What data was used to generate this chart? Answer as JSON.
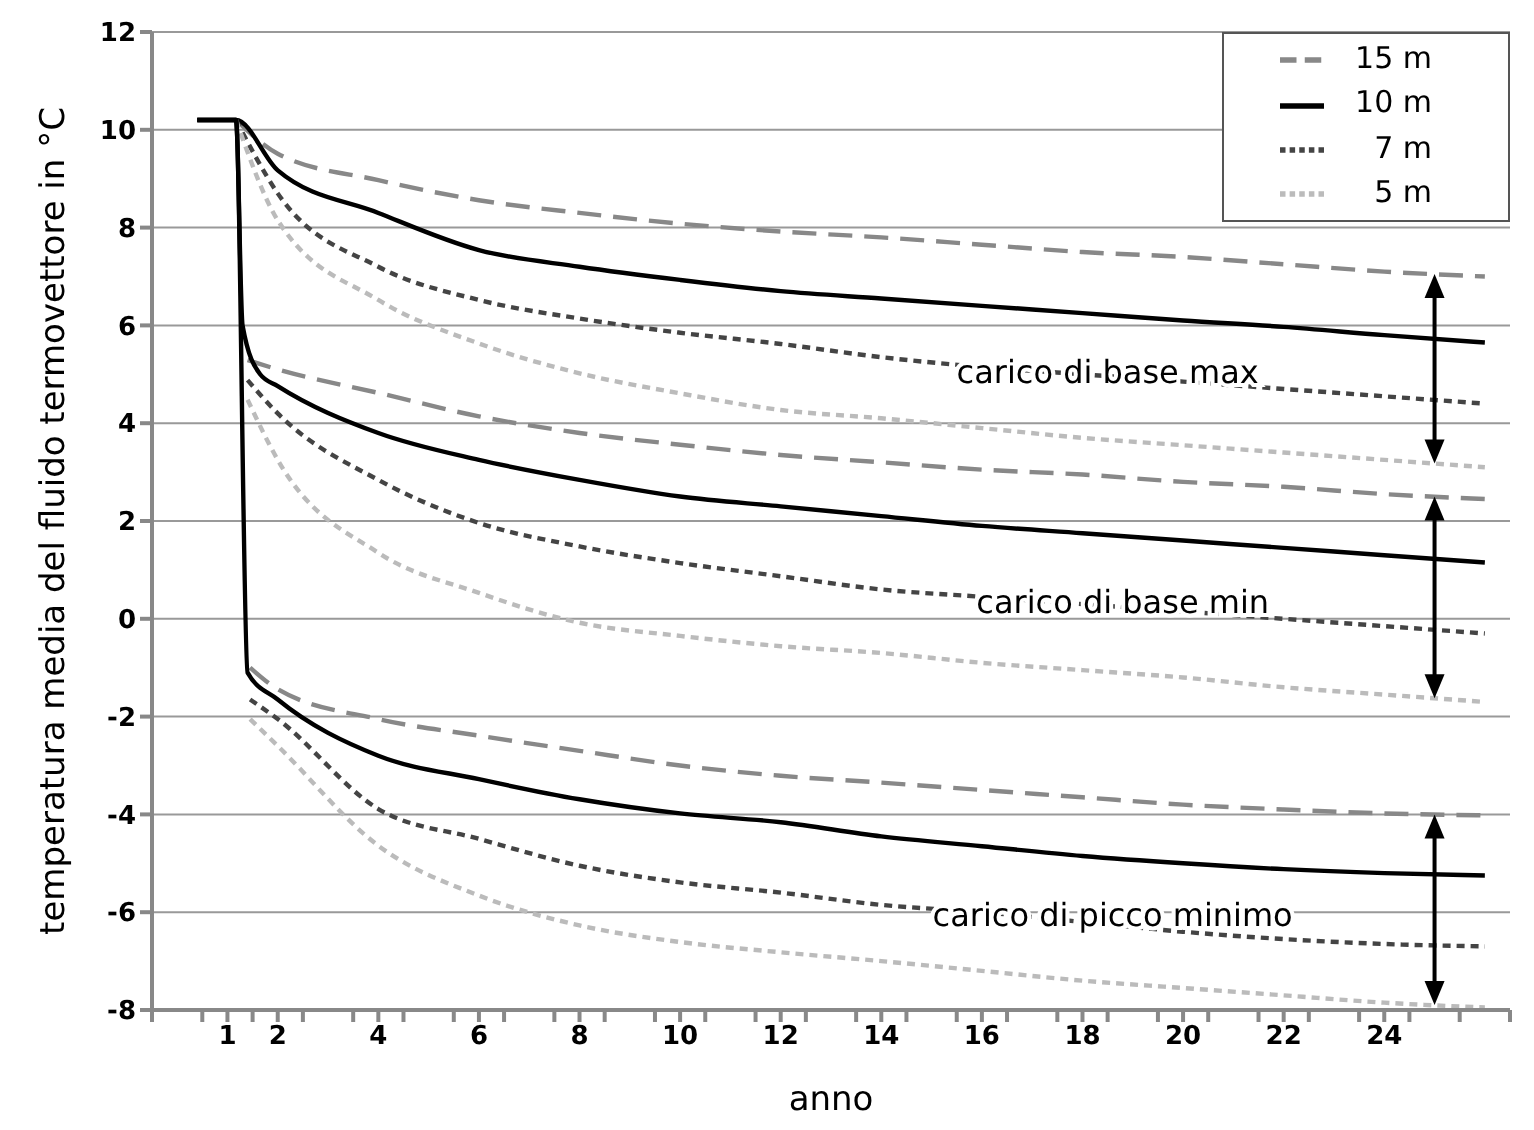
{
  "chart_data": {
    "type": "line",
    "xlabel": "anno",
    "ylabel": "temperatura media del fluido termovettore in °C",
    "xlim": [
      -0.5,
      26.5
    ],
    "xticks": [
      {
        "value": -0.5,
        "label": null
      },
      {
        "value": 0.5,
        "label": null
      },
      1,
      {
        "value": 1.5,
        "label": null
      },
      2,
      {
        "value": 2.5,
        "label": null
      },
      {
        "value": 3.5,
        "label": null
      },
      4,
      {
        "value": 4.5,
        "label": null
      },
      {
        "value": 5.5,
        "label": null
      },
      6,
      {
        "value": 6.5,
        "label": null
      },
      {
        "value": 7.5,
        "label": null
      },
      8,
      {
        "value": 8.5,
        "label": null
      },
      {
        "value": 9.5,
        "label": null
      },
      10,
      {
        "value": 10.5,
        "label": null
      },
      {
        "value": 11.5,
        "label": null
      },
      12,
      {
        "value": 12.5,
        "label": null
      },
      {
        "value": 13.5,
        "label": null
      },
      14,
      {
        "value": 14.5,
        "label": null
      },
      {
        "value": 15.5,
        "label": null
      },
      16,
      {
        "value": 16.5,
        "label": null
      },
      {
        "value": 17.5,
        "label": null
      },
      18,
      {
        "value": 18.5,
        "label": null
      },
      {
        "value": 19.5,
        "label": null
      },
      20,
      {
        "value": 20.5,
        "label": null
      },
      {
        "value": 21.5,
        "label": null
      },
      22,
      {
        "value": 22.5,
        "label": null
      },
      {
        "value": 23.5,
        "label": null
      },
      24,
      {
        "value": 24.5,
        "label": null
      },
      {
        "value": 25.5,
        "label": null
      },
      {
        "value": 26.5,
        "label": null
      }
    ],
    "ylim": [
      -8,
      12
    ],
    "yticks": [
      -8,
      -6,
      -4,
      -2,
      0,
      2,
      4,
      6,
      8,
      10,
      12
    ],
    "grid": "y",
    "legend": "top right",
    "series": [
      {
        "name": "15 m",
        "color": "#888888",
        "line_style": "dashed",
        "x": [
          1.17,
          2,
          4,
          6,
          8,
          10,
          12,
          14,
          16,
          18,
          20,
          22,
          24,
          26
        ],
        "values": [
          10.2,
          9.51,
          8.97,
          8.56,
          8.3,
          8.08,
          7.92,
          7.8,
          7.65,
          7.5,
          7.4,
          7.25,
          7.1,
          7.0
        ]
      },
      {
        "name": "10 m",
        "color": "#000000",
        "line_style": "solid",
        "x": [
          0.4,
          1.17,
          2,
          4,
          6,
          8,
          10,
          12,
          14,
          16,
          18,
          20,
          22,
          24,
          26
        ],
        "values": [
          10.2,
          10.2,
          9.17,
          8.3,
          7.54,
          7.2,
          6.93,
          6.7,
          6.55,
          6.4,
          6.25,
          6.1,
          5.97,
          5.8,
          5.65
        ]
      },
      {
        "name": "7 m",
        "color": "#444444",
        "line_style": "dotted",
        "x": [
          1.17,
          2,
          4,
          6,
          8,
          10,
          12,
          14,
          16,
          18,
          20,
          22,
          24,
          26
        ],
        "values": [
          10.2,
          8.7,
          7.2,
          6.52,
          6.14,
          5.85,
          5.62,
          5.35,
          5.15,
          5.0,
          4.85,
          4.7,
          4.55,
          4.4
        ]
      },
      {
        "name": "5 m",
        "color": "#bbbbbb",
        "line_style": "dotted",
        "x": [
          1.17,
          2,
          4,
          6,
          8,
          10,
          12,
          14,
          16,
          18,
          20,
          22,
          24,
          26
        ],
        "values": [
          10.2,
          8.15,
          6.52,
          5.63,
          5.02,
          4.61,
          4.27,
          4.1,
          3.9,
          3.7,
          3.55,
          3.4,
          3.25,
          3.1
        ]
      },
      {
        "color": "#888888",
        "line_style": "dashed",
        "x": [
          1.4,
          2,
          4,
          6,
          8,
          10,
          12,
          14,
          16,
          18,
          20,
          22,
          24,
          26
        ],
        "values": [
          5.29,
          5.1,
          4.62,
          4.14,
          3.8,
          3.56,
          3.35,
          3.2,
          3.05,
          2.95,
          2.8,
          2.7,
          2.55,
          2.45
        ]
      },
      {
        "color": "#000000",
        "line_style": "solid",
        "x": [
          0.4,
          1.17,
          1.3,
          1.65,
          2,
          4,
          6,
          8,
          10,
          12,
          14,
          16,
          18,
          20,
          22,
          24,
          26
        ],
        "values": [
          10.2,
          10.2,
          6.0,
          5.0,
          4.76,
          3.8,
          3.25,
          2.84,
          2.5,
          2.3,
          2.1,
          1.9,
          1.75,
          1.6,
          1.45,
          1.3,
          1.15
        ]
      },
      {
        "color": "#444444",
        "line_style": "dotted",
        "x": [
          1.4,
          2,
          4,
          6,
          8,
          10,
          12,
          14,
          16,
          18,
          20,
          22,
          24,
          26
        ],
        "values": [
          4.88,
          4.2,
          2.84,
          1.96,
          1.48,
          1.14,
          0.87,
          0.6,
          0.45,
          0.3,
          0.15,
          0.0,
          -0.15,
          -0.3
        ]
      },
      {
        "color": "#bbbbbb",
        "line_style": "dotted",
        "x": [
          1.4,
          2,
          4,
          6,
          8,
          10,
          12,
          14,
          16,
          18,
          20,
          22,
          24,
          26
        ],
        "values": [
          4.48,
          3.25,
          1.35,
          0.53,
          -0.08,
          -0.35,
          -0.56,
          -0.7,
          -0.9,
          -1.05,
          -1.2,
          -1.4,
          -1.55,
          -1.7
        ]
      },
      {
        "color": "#888888",
        "line_style": "dashed",
        "x": [
          1.45,
          2,
          4,
          6,
          8,
          10,
          12,
          14,
          16,
          18,
          20,
          22,
          24,
          26
        ],
        "values": [
          -1.0,
          -1.44,
          -2.05,
          -2.39,
          -2.7,
          -3.0,
          -3.21,
          -3.35,
          -3.5,
          -3.65,
          -3.8,
          -3.9,
          -3.98,
          -4.02
        ]
      },
      {
        "color": "#000000",
        "line_style": "solid",
        "x": [
          0.4,
          1.17,
          1.4,
          2,
          4,
          6,
          8,
          10,
          12,
          14,
          16,
          18,
          20,
          22,
          24,
          26
        ],
        "values": [
          10.2,
          10.2,
          -1.1,
          -1.65,
          -2.8,
          -3.28,
          -3.69,
          -3.98,
          -4.16,
          -4.45,
          -4.65,
          -4.85,
          -5.0,
          -5.12,
          -5.2,
          -5.25
        ]
      },
      {
        "color": "#444444",
        "line_style": "dotted",
        "x": [
          1.45,
          2,
          4,
          6,
          8,
          10,
          12,
          14,
          16,
          18,
          20,
          22,
          24,
          26
        ],
        "values": [
          -1.65,
          -2.05,
          -3.89,
          -4.5,
          -5.05,
          -5.39,
          -5.6,
          -5.85,
          -6.0,
          -6.2,
          -6.4,
          -6.55,
          -6.65,
          -6.7
        ]
      },
      {
        "color": "#bbbbbb",
        "line_style": "dotted",
        "x": [
          1.45,
          2,
          4,
          6,
          8,
          10,
          12,
          14,
          16,
          18,
          20,
          22,
          24,
          26
        ],
        "values": [
          -2.05,
          -2.6,
          -4.64,
          -5.66,
          -6.27,
          -6.61,
          -6.82,
          -7.0,
          -7.2,
          -7.4,
          -7.55,
          -7.7,
          -7.85,
          -7.95
        ]
      }
    ],
    "annotations": [
      {
        "text": "carico di base max",
        "x": 18.5,
        "y": 5.0
      },
      {
        "text": "carico di base min",
        "x": 18.8,
        "y": 0.3
      },
      {
        "text": "carico di picco minimo",
        "x": 18.6,
        "y": -6.1
      }
    ]
  }
}
